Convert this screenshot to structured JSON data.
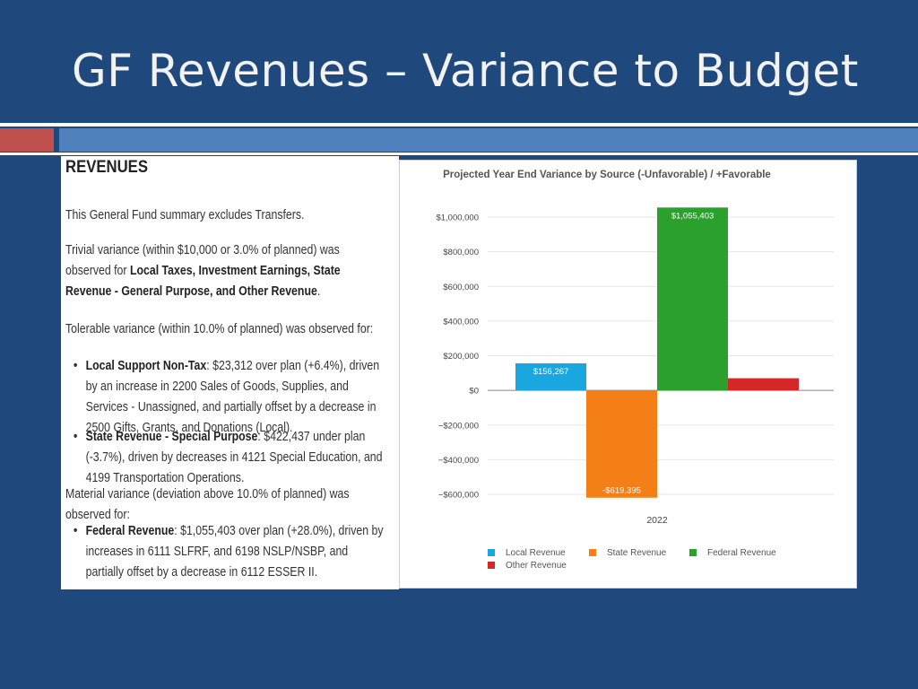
{
  "slide": {
    "title": "GF Revenues – Variance to Budget"
  },
  "revenues_text": {
    "heading": "REVENUES",
    "intro": "This General Fund summary excludes Transfers.",
    "trivial_prefix": "Trivial variance (within $10,000 or 3.0% of planned) was observed for ",
    "trivial_bold": "Local Taxes, Investment Earnings, State Revenue - General Purpose, and Other Revenue",
    "trivial_suffix": ".",
    "tolerable_intro": "Tolerable variance (within 10.0% of planned) was observed for:",
    "tolerable_items": [
      {
        "bold": "Local Support Non-Tax",
        "text": ": $23,312 over plan (+6.4%), driven by an increase in 2200 Sales of Goods, Supplies, and Services - Unassigned, and partially offset by a decrease in 2500 Gifts, Grants, and Donations (Local)."
      },
      {
        "bold": "State Revenue - Special Purpose",
        "text": ": $422,437 under plan (-3.7%), driven by decreases in 4121 Special Education, and 4199 Transportation Operations."
      }
    ],
    "material_intro": "Material variance (deviation above 10.0% of planned) was observed for:",
    "material_items": [
      {
        "bold": "Federal Revenue",
        "text": ": $1,055,403 over plan (+28.0%), driven by increases in 6111 SLFRF, and 6198 NSLP/NSBP, and partially offset by a decrease in 6112 ESSER II."
      }
    ]
  },
  "chart_data": {
    "type": "bar",
    "title": "Projected Year End Variance by Source  (-Unfavorable) / +Favorable",
    "categories": [
      "2022"
    ],
    "series": [
      {
        "name": "Local Revenue",
        "values": [
          156267
        ],
        "label": "$156,267",
        "color": "#1aa7e0"
      },
      {
        "name": "State Revenue",
        "values": [
          -619395
        ],
        "label": "-$619,395",
        "color": "#f57f17"
      },
      {
        "name": "Federal Revenue",
        "values": [
          1055403
        ],
        "label": "$1,055,403",
        "color": "#2ca02c"
      },
      {
        "name": "Other Revenue",
        "values": [
          70000
        ],
        "label": "",
        "color": "#d62728"
      }
    ],
    "ylim": [
      -600000,
      1000000
    ],
    "yticks": [
      1000000,
      800000,
      600000,
      400000,
      200000,
      0,
      -200000,
      -400000,
      -600000
    ],
    "ytick_labels": [
      "$1,000,000",
      "$800,000",
      "$600,000",
      "$400,000",
      "$200,000",
      "$0",
      "−$200,000",
      "−$400,000",
      "−$600,000"
    ],
    "xlabel": "",
    "ylabel": "",
    "grid": true,
    "legend_position": "bottom"
  }
}
